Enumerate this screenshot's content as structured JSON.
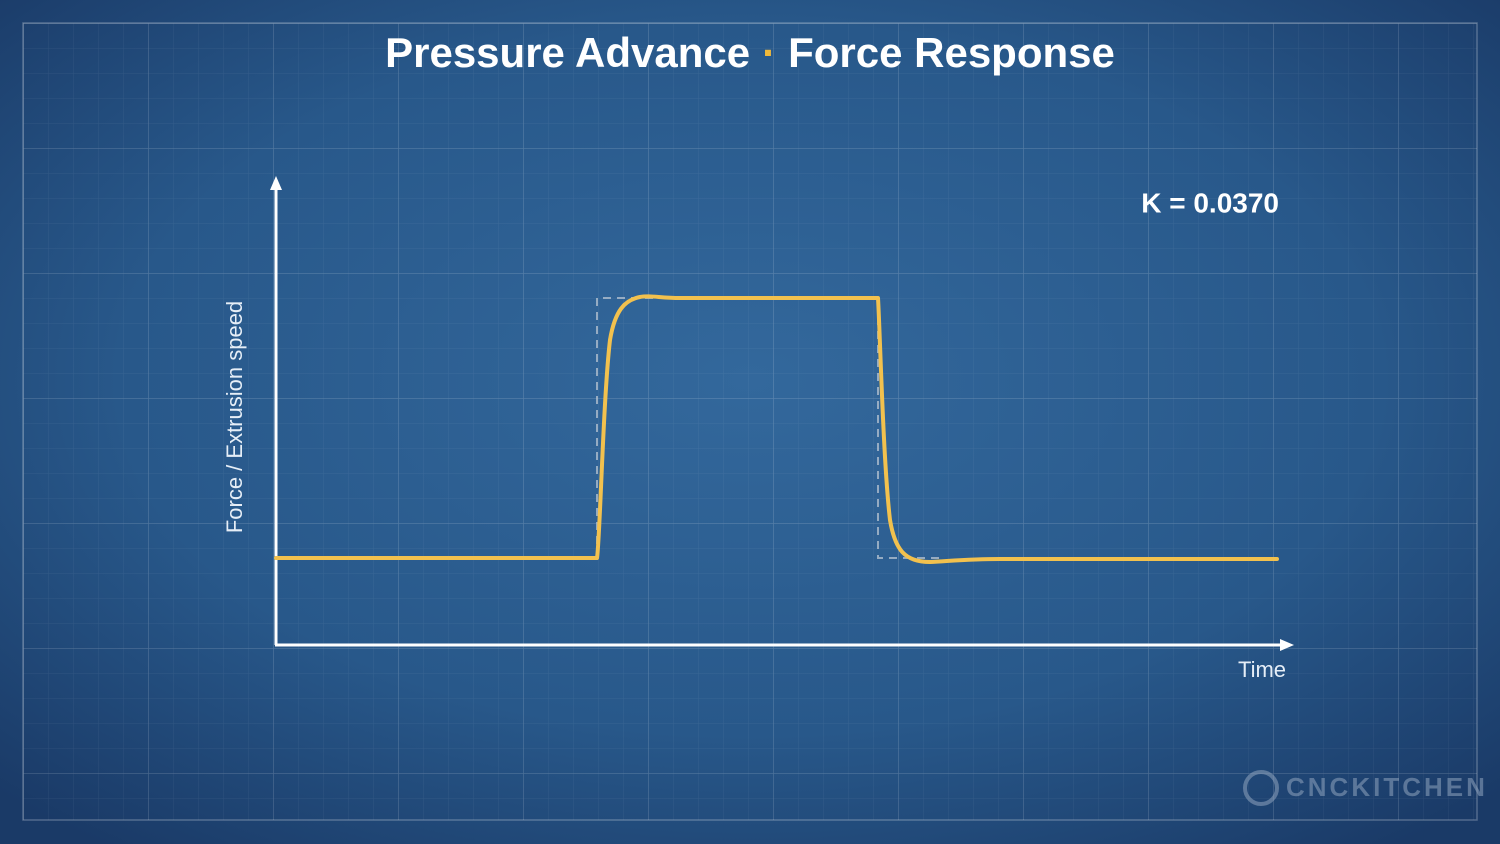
{
  "title_left": "Pressure Advance",
  "title_separator": "·",
  "title_right": "Force Response",
  "annotation": "K = 0.0370",
  "x_axis_label": "Time",
  "y_axis_label": "Force / Extrusion speed",
  "watermark": "CNCKITCHEN"
}
